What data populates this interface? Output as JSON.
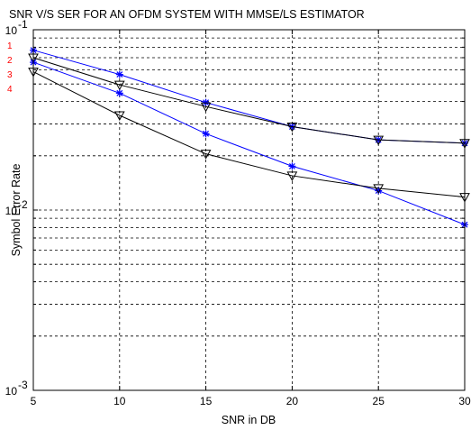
{
  "chart_data": {
    "type": "line",
    "title": "SNR V/S SER FOR AN OFDM SYSTEM WITH MMSE/LS ESTIMATOR",
    "xlabel": "SNR in DB",
    "ylabel": "Symbol Error Rate",
    "xlim": [
      5,
      30
    ],
    "ylim": [
      0.001,
      0.1
    ],
    "yscale": "log",
    "grid": true,
    "x_ticks": [
      "5",
      "10",
      "15",
      "20",
      "25",
      "30"
    ],
    "y_ticks": [
      {
        "base": "10",
        "exp": "-3",
        "value": 0.001
      },
      {
        "base": "10",
        "exp": "-2",
        "value": 0.01
      },
      {
        "base": "10",
        "exp": "-1",
        "value": 0.1
      }
    ],
    "legend_markers": [
      "1",
      "2",
      "3",
      "4"
    ],
    "series": [
      {
        "color": "#0000ff",
        "marker": "star",
        "x": [
          5,
          10,
          15,
          20,
          25,
          30
        ],
        "y": [
          0.077,
          0.0565,
          0.0395,
          0.029,
          0.0245,
          0.0235
        ]
      },
      {
        "color": "#000000",
        "marker": "triangle-down",
        "x": [
          5,
          10,
          15,
          20,
          25,
          30
        ],
        "y": [
          0.07,
          0.0495,
          0.0375,
          0.029,
          0.0245,
          0.0235
        ]
      },
      {
        "color": "#0000ff",
        "marker": "star",
        "x": [
          5,
          10,
          15,
          20,
          25,
          30
        ],
        "y": [
          0.066,
          0.0445,
          0.0265,
          0.0175,
          0.0128,
          0.0083
        ]
      },
      {
        "color": "#000000",
        "marker": "triangle-down",
        "x": [
          5,
          10,
          15,
          20,
          25,
          30
        ],
        "y": [
          0.0585,
          0.0335,
          0.0205,
          0.0155,
          0.0132,
          0.0118
        ]
      }
    ]
  }
}
